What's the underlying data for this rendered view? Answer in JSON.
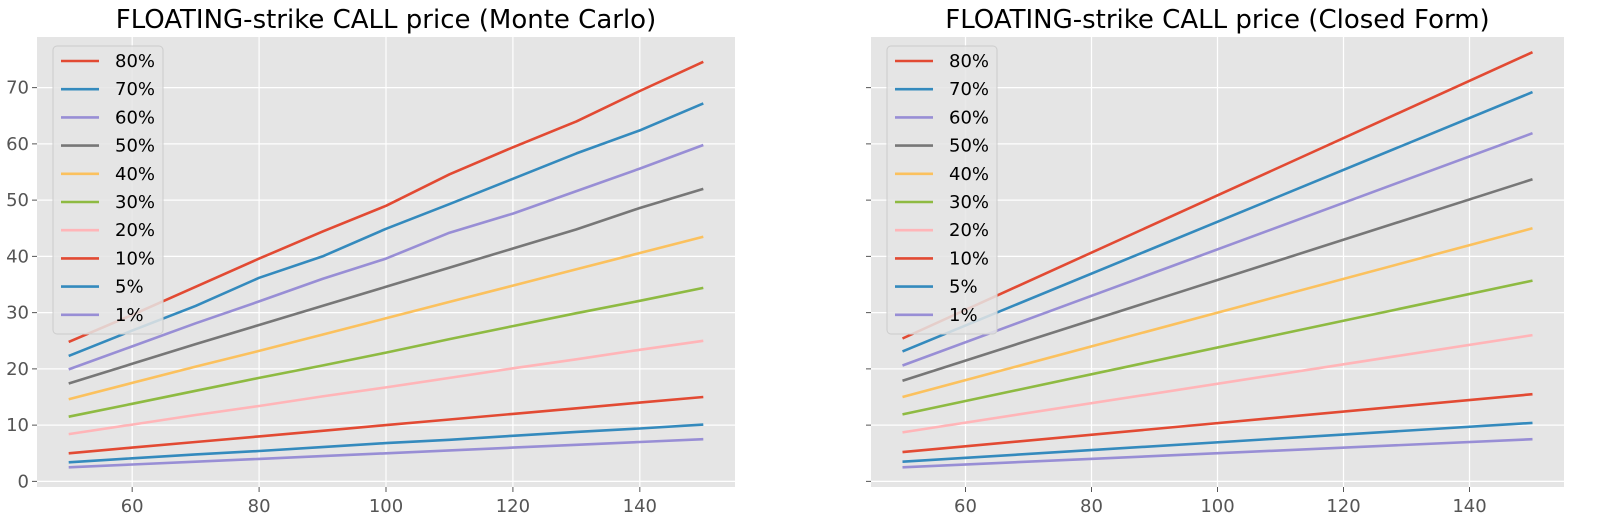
{
  "colors": {
    "figure_bg": "#ffffff",
    "axes_bg": "#e5e5e5",
    "grid": "#ffffff",
    "tick_text": "#555555",
    "title_text": "#000000",
    "legend_bg": "#e5e5e5",
    "legend_border": "#cccccc"
  },
  "chart_data": [
    {
      "type": "line",
      "title": "FLOATING-strike CALL price (Monte Carlo)",
      "xlabel": "",
      "ylabel": "",
      "xlim": [
        45,
        155
      ],
      "ylim": [
        -1,
        79
      ],
      "xticks": [
        60,
        80,
        100,
        120,
        140
      ],
      "yticks": [
        0,
        10,
        20,
        30,
        40,
        50,
        60,
        70
      ],
      "grid": true,
      "legend_position": "top-left",
      "series": [
        {
          "name": "80%",
          "color": "#E24A33",
          "x": [
            50,
            60,
            70,
            80,
            90,
            100,
            110,
            120,
            130,
            140,
            150
          ],
          "y": [
            24.8,
            29.6,
            34.6,
            39.6,
            44.4,
            49.0,
            54.6,
            59.4,
            64.0,
            69.4,
            74.6
          ]
        },
        {
          "name": "70%",
          "color": "#348ABD",
          "x": [
            50,
            60,
            70,
            80,
            90,
            100,
            110,
            120,
            130,
            140,
            150
          ],
          "y": [
            22.3,
            26.8,
            31.2,
            36.2,
            40.0,
            44.9,
            49.3,
            53.8,
            58.3,
            62.4,
            67.2
          ]
        },
        {
          "name": "60%",
          "color": "#988ED5",
          "x": [
            50,
            60,
            70,
            80,
            90,
            100,
            110,
            120,
            130,
            140,
            150
          ],
          "y": [
            19.9,
            24.0,
            28.1,
            32.0,
            36.0,
            39.6,
            44.2,
            47.6,
            51.6,
            55.6,
            59.8
          ]
        },
        {
          "name": "50%",
          "color": "#777777",
          "x": [
            50,
            60,
            70,
            80,
            90,
            100,
            110,
            120,
            130,
            140,
            150
          ],
          "y": [
            17.4,
            20.9,
            24.4,
            27.8,
            31.2,
            34.6,
            38.0,
            41.4,
            44.8,
            48.6,
            52.0
          ]
        },
        {
          "name": "40%",
          "color": "#FBC15E",
          "x": [
            50,
            60,
            70,
            80,
            90,
            100,
            110,
            120,
            130,
            140,
            150
          ],
          "y": [
            14.6,
            17.5,
            20.4,
            23.2,
            26.1,
            29.0,
            31.9,
            34.8,
            37.7,
            40.6,
            43.5
          ]
        },
        {
          "name": "30%",
          "color": "#8EBA42",
          "x": [
            50,
            60,
            70,
            80,
            90,
            100,
            110,
            120,
            130,
            140,
            150
          ],
          "y": [
            11.5,
            13.8,
            16.1,
            18.4,
            20.6,
            22.9,
            25.3,
            27.6,
            29.9,
            32.1,
            34.4
          ]
        },
        {
          "name": "20%",
          "color": "#FFB5B8",
          "x": [
            50,
            60,
            70,
            80,
            90,
            100,
            110,
            120,
            130,
            140,
            150
          ],
          "y": [
            8.4,
            10.1,
            11.8,
            13.4,
            15.1,
            16.7,
            18.4,
            20.1,
            21.7,
            23.4,
            25.0
          ]
        },
        {
          "name": "10%",
          "color": "#E24A33",
          "x": [
            50,
            60,
            70,
            80,
            90,
            100,
            110,
            120,
            130,
            140,
            150
          ],
          "y": [
            5.0,
            6.0,
            7.0,
            8.0,
            9.0,
            10.0,
            11.0,
            12.0,
            13.0,
            14.0,
            15.0
          ]
        },
        {
          "name": "5%",
          "color": "#348ABD",
          "x": [
            50,
            60,
            70,
            80,
            90,
            100,
            110,
            120,
            130,
            140,
            150
          ],
          "y": [
            3.4,
            4.1,
            4.8,
            5.4,
            6.1,
            6.8,
            7.4,
            8.1,
            8.8,
            9.4,
            10.1
          ]
        },
        {
          "name": "1%",
          "color": "#988ED5",
          "x": [
            50,
            60,
            70,
            80,
            90,
            100,
            110,
            120,
            130,
            140,
            150
          ],
          "y": [
            2.5,
            3.0,
            3.5,
            4.0,
            4.5,
            5.0,
            5.5,
            6.0,
            6.5,
            7.0,
            7.5
          ]
        }
      ]
    },
    {
      "type": "line",
      "title": "FLOATING-strike CALL price (Closed Form)",
      "xlabel": "",
      "ylabel": "",
      "xlim": [
        45,
        155
      ],
      "ylim": [
        -1,
        79
      ],
      "xticks": [
        60,
        80,
        100,
        120,
        140
      ],
      "yticks": [
        0,
        10,
        20,
        30,
        40,
        50,
        60,
        70
      ],
      "show_ytick_labels": false,
      "grid": true,
      "legend_position": "top-left",
      "series": [
        {
          "name": "80%",
          "color": "#E24A33",
          "x": [
            50,
            150
          ],
          "y": [
            25.4,
            76.3
          ]
        },
        {
          "name": "70%",
          "color": "#348ABD",
          "x": [
            50,
            150
          ],
          "y": [
            23.1,
            69.2
          ]
        },
        {
          "name": "60%",
          "color": "#988ED5",
          "x": [
            50,
            150
          ],
          "y": [
            20.6,
            61.9
          ]
        },
        {
          "name": "50%",
          "color": "#777777",
          "x": [
            50,
            150
          ],
          "y": [
            17.9,
            53.7
          ]
        },
        {
          "name": "40%",
          "color": "#FBC15E",
          "x": [
            50,
            150
          ],
          "y": [
            15.0,
            45.0
          ]
        },
        {
          "name": "30%",
          "color": "#8EBA42",
          "x": [
            50,
            150
          ],
          "y": [
            11.9,
            35.7
          ]
        },
        {
          "name": "20%",
          "color": "#FFB5B8",
          "x": [
            50,
            150
          ],
          "y": [
            8.7,
            26.0
          ]
        },
        {
          "name": "10%",
          "color": "#E24A33",
          "x": [
            50,
            150
          ],
          "y": [
            5.2,
            15.5
          ]
        },
        {
          "name": "5%",
          "color": "#348ABD",
          "x": [
            50,
            150
          ],
          "y": [
            3.5,
            10.4
          ]
        },
        {
          "name": "1%",
          "color": "#988ED5",
          "x": [
            50,
            150
          ],
          "y": [
            2.5,
            7.5
          ]
        }
      ]
    }
  ]
}
